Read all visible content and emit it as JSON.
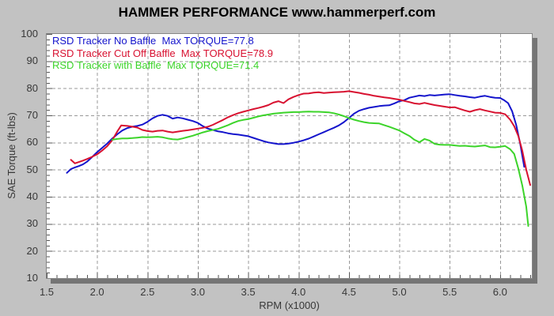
{
  "header": {
    "title": "HAMMER PERFORMANCE www.hammerperf.com"
  },
  "colors": {
    "page_background": "#c2c2c2",
    "plot_background": "#ffffff",
    "plot_border": "#868686",
    "plot_shadow": "#757575",
    "gridline": "#989898",
    "tick_mark": "#555555",
    "tick_text": "#383838",
    "title_text": "#000000",
    "series_blue": "#1414cc",
    "series_red": "#d81130",
    "series_green": "#3cd42a"
  },
  "chart_data": {
    "type": "line",
    "title": "HAMMER PERFORMANCE www.hammerperf.com",
    "xlabel": "RPM (x1000)",
    "ylabel": "SAE Torque (ft-lbs)",
    "xlim": [
      1.5,
      6.32
    ],
    "ylim": [
      10,
      100
    ],
    "x_ticks": [
      1.5,
      2.0,
      2.5,
      3.0,
      3.5,
      4.0,
      4.5,
      5.0,
      5.5,
      6.0
    ],
    "x_tick_decimals": 1,
    "y_ticks": [
      100,
      90,
      80,
      70,
      60,
      50,
      40,
      30,
      20,
      10
    ],
    "x_minor_step": 0.1,
    "y_minor_step": 2,
    "grid": "dashed-major-both-axes",
    "legend_position": "top-left-inside",
    "series": [
      {
        "name": "RSD Tracker No Baffle",
        "label": "RSD Tracker No Baffle  Max TORQUE=77.8",
        "max_torque": 77.8,
        "color": "#1414cc",
        "points": [
          [
            1.7,
            48.8
          ],
          [
            1.74,
            50.2
          ],
          [
            1.78,
            50.8
          ],
          [
            1.82,
            51.3
          ],
          [
            1.86,
            51.9
          ],
          [
            1.9,
            52.9
          ],
          [
            1.95,
            54.6
          ],
          [
            2.0,
            56.4
          ],
          [
            2.05,
            58.0
          ],
          [
            2.1,
            59.6
          ],
          [
            2.15,
            61.4
          ],
          [
            2.2,
            63.0
          ],
          [
            2.25,
            64.4
          ],
          [
            2.3,
            65.3
          ],
          [
            2.35,
            65.8
          ],
          [
            2.4,
            66.1
          ],
          [
            2.45,
            66.6
          ],
          [
            2.5,
            67.6
          ],
          [
            2.55,
            68.9
          ],
          [
            2.6,
            69.8
          ],
          [
            2.65,
            70.2
          ],
          [
            2.7,
            69.8
          ],
          [
            2.75,
            68.8
          ],
          [
            2.8,
            69.2
          ],
          [
            2.85,
            68.9
          ],
          [
            2.9,
            68.4
          ],
          [
            2.95,
            67.9
          ],
          [
            3.0,
            67.2
          ],
          [
            3.05,
            66.0
          ],
          [
            3.1,
            65.1
          ],
          [
            3.15,
            64.6
          ],
          [
            3.2,
            64.1
          ],
          [
            3.25,
            63.8
          ],
          [
            3.3,
            63.4
          ],
          [
            3.35,
            63.1
          ],
          [
            3.4,
            62.9
          ],
          [
            3.45,
            62.6
          ],
          [
            3.5,
            62.3
          ],
          [
            3.55,
            61.7
          ],
          [
            3.6,
            61.1
          ],
          [
            3.65,
            60.5
          ],
          [
            3.7,
            60.0
          ],
          [
            3.75,
            59.7
          ],
          [
            3.8,
            59.4
          ],
          [
            3.85,
            59.4
          ],
          [
            3.9,
            59.6
          ],
          [
            3.95,
            59.9
          ],
          [
            4.0,
            60.3
          ],
          [
            4.05,
            60.8
          ],
          [
            4.1,
            61.4
          ],
          [
            4.15,
            62.2
          ],
          [
            4.2,
            63.0
          ],
          [
            4.25,
            63.8
          ],
          [
            4.3,
            64.6
          ],
          [
            4.35,
            65.4
          ],
          [
            4.4,
            66.3
          ],
          [
            4.45,
            67.5
          ],
          [
            4.5,
            69.0
          ],
          [
            4.55,
            70.6
          ],
          [
            4.6,
            71.7
          ],
          [
            4.65,
            72.3
          ],
          [
            4.7,
            72.8
          ],
          [
            4.75,
            73.1
          ],
          [
            4.8,
            73.4
          ],
          [
            4.85,
            73.6
          ],
          [
            4.9,
            73.7
          ],
          [
            4.95,
            74.4
          ],
          [
            5.0,
            75.2
          ],
          [
            5.05,
            75.6
          ],
          [
            5.1,
            76.5
          ],
          [
            5.15,
            76.9
          ],
          [
            5.2,
            77.3
          ],
          [
            5.25,
            77.1
          ],
          [
            5.3,
            77.5
          ],
          [
            5.35,
            77.3
          ],
          [
            5.4,
            77.5
          ],
          [
            5.45,
            77.7
          ],
          [
            5.5,
            77.8
          ],
          [
            5.55,
            77.5
          ],
          [
            5.6,
            77.2
          ],
          [
            5.65,
            77.0
          ],
          [
            5.7,
            76.7
          ],
          [
            5.75,
            76.5
          ],
          [
            5.8,
            76.9
          ],
          [
            5.85,
            77.2
          ],
          [
            5.9,
            76.8
          ],
          [
            5.95,
            76.5
          ],
          [
            6.0,
            76.4
          ],
          [
            6.04,
            75.6
          ],
          [
            6.08,
            74.5
          ],
          [
            6.12,
            71.5
          ],
          [
            6.16,
            66.5
          ],
          [
            6.2,
            59.5
          ],
          [
            6.24,
            51.0
          ]
        ]
      },
      {
        "name": "RSD Tracker Cut Off Baffle",
        "label": "RSD Tracker Cut Off Baffle  Max TORQUE=78.9",
        "max_torque": 78.9,
        "color": "#d81130",
        "points": [
          [
            1.74,
            53.6
          ],
          [
            1.78,
            52.3
          ],
          [
            1.82,
            52.8
          ],
          [
            1.86,
            53.3
          ],
          [
            1.9,
            53.9
          ],
          [
            1.95,
            54.7
          ],
          [
            2.0,
            55.6
          ],
          [
            2.05,
            57.0
          ],
          [
            2.1,
            58.6
          ],
          [
            2.15,
            60.8
          ],
          [
            2.2,
            64.0
          ],
          [
            2.24,
            66.3
          ],
          [
            2.3,
            66.1
          ],
          [
            2.35,
            65.8
          ],
          [
            2.4,
            65.5
          ],
          [
            2.45,
            64.6
          ],
          [
            2.5,
            64.2
          ],
          [
            2.55,
            64.0
          ],
          [
            2.6,
            64.3
          ],
          [
            2.65,
            64.4
          ],
          [
            2.7,
            64.0
          ],
          [
            2.75,
            63.7
          ],
          [
            2.8,
            64.0
          ],
          [
            2.85,
            64.3
          ],
          [
            2.9,
            64.5
          ],
          [
            2.95,
            64.8
          ],
          [
            3.0,
            65.1
          ],
          [
            3.05,
            65.4
          ],
          [
            3.1,
            65.8
          ],
          [
            3.15,
            66.5
          ],
          [
            3.2,
            67.4
          ],
          [
            3.25,
            68.3
          ],
          [
            3.3,
            69.3
          ],
          [
            3.35,
            70.1
          ],
          [
            3.4,
            70.8
          ],
          [
            3.45,
            71.3
          ],
          [
            3.5,
            71.8
          ],
          [
            3.55,
            72.3
          ],
          [
            3.6,
            72.7
          ],
          [
            3.65,
            73.2
          ],
          [
            3.7,
            73.8
          ],
          [
            3.75,
            74.7
          ],
          [
            3.8,
            75.2
          ],
          [
            3.85,
            74.5
          ],
          [
            3.9,
            75.9
          ],
          [
            3.95,
            76.8
          ],
          [
            4.0,
            77.5
          ],
          [
            4.05,
            78.0
          ],
          [
            4.1,
            78.1
          ],
          [
            4.15,
            78.4
          ],
          [
            4.2,
            78.5
          ],
          [
            4.25,
            78.2
          ],
          [
            4.3,
            78.4
          ],
          [
            4.35,
            78.5
          ],
          [
            4.4,
            78.6
          ],
          [
            4.45,
            78.7
          ],
          [
            4.5,
            78.9
          ],
          [
            4.55,
            78.6
          ],
          [
            4.6,
            78.3
          ],
          [
            4.65,
            77.9
          ],
          [
            4.7,
            77.6
          ],
          [
            4.75,
            77.2
          ],
          [
            4.8,
            76.9
          ],
          [
            4.85,
            76.6
          ],
          [
            4.9,
            76.4
          ],
          [
            4.95,
            76.1
          ],
          [
            5.0,
            75.8
          ],
          [
            5.05,
            75.3
          ],
          [
            5.1,
            74.9
          ],
          [
            5.15,
            74.4
          ],
          [
            5.2,
            74.2
          ],
          [
            5.25,
            74.6
          ],
          [
            5.3,
            74.2
          ],
          [
            5.35,
            73.8
          ],
          [
            5.4,
            73.5
          ],
          [
            5.45,
            73.2
          ],
          [
            5.5,
            72.9
          ],
          [
            5.55,
            73.0
          ],
          [
            5.6,
            72.4
          ],
          [
            5.65,
            71.8
          ],
          [
            5.7,
            71.3
          ],
          [
            5.75,
            71.9
          ],
          [
            5.8,
            72.3
          ],
          [
            5.85,
            71.8
          ],
          [
            5.9,
            71.4
          ],
          [
            5.95,
            71.0
          ],
          [
            6.0,
            70.9
          ],
          [
            6.05,
            70.4
          ],
          [
            6.1,
            68.4
          ],
          [
            6.14,
            66.0
          ],
          [
            6.18,
            62.5
          ],
          [
            6.22,
            57.0
          ],
          [
            6.26,
            50.0
          ],
          [
            6.3,
            44.3
          ]
        ]
      },
      {
        "name": "RSD Tracker with Baffle",
        "label": "RSD Tracker with Baffle  Max TORQUE=71.4",
        "max_torque": 71.4,
        "color": "#3cd42a",
        "points": [
          [
            2.15,
            61.0
          ],
          [
            2.2,
            61.3
          ],
          [
            2.25,
            61.5
          ],
          [
            2.3,
            61.5
          ],
          [
            2.35,
            61.6
          ],
          [
            2.4,
            61.8
          ],
          [
            2.45,
            62.0
          ],
          [
            2.5,
            61.9
          ],
          [
            2.55,
            62.0
          ],
          [
            2.6,
            62.1
          ],
          [
            2.65,
            61.9
          ],
          [
            2.7,
            61.5
          ],
          [
            2.75,
            61.2
          ],
          [
            2.8,
            61.1
          ],
          [
            2.85,
            61.5
          ],
          [
            2.9,
            62.0
          ],
          [
            2.95,
            62.5
          ],
          [
            3.0,
            63.1
          ],
          [
            3.05,
            63.7
          ],
          [
            3.1,
            64.2
          ],
          [
            3.15,
            64.6
          ],
          [
            3.2,
            65.0
          ],
          [
            3.25,
            65.7
          ],
          [
            3.3,
            66.4
          ],
          [
            3.35,
            67.2
          ],
          [
            3.4,
            67.9
          ],
          [
            3.45,
            68.3
          ],
          [
            3.5,
            68.6
          ],
          [
            3.55,
            69.1
          ],
          [
            3.6,
            69.6
          ],
          [
            3.65,
            70.0
          ],
          [
            3.7,
            70.3
          ],
          [
            3.75,
            70.6
          ],
          [
            3.8,
            70.8
          ],
          [
            3.85,
            71.0
          ],
          [
            3.9,
            71.1
          ],
          [
            3.95,
            71.2
          ],
          [
            4.0,
            71.2
          ],
          [
            4.05,
            71.3
          ],
          [
            4.1,
            71.4
          ],
          [
            4.15,
            71.3
          ],
          [
            4.2,
            71.3
          ],
          [
            4.25,
            71.2
          ],
          [
            4.3,
            71.1
          ],
          [
            4.35,
            70.8
          ],
          [
            4.4,
            70.3
          ],
          [
            4.45,
            69.7
          ],
          [
            4.5,
            69.0
          ],
          [
            4.55,
            68.4
          ],
          [
            4.6,
            67.9
          ],
          [
            4.65,
            67.5
          ],
          [
            4.7,
            67.2
          ],
          [
            4.75,
            67.1
          ],
          [
            4.8,
            67.0
          ],
          [
            4.85,
            66.4
          ],
          [
            4.9,
            65.8
          ],
          [
            4.95,
            65.1
          ],
          [
            5.0,
            64.4
          ],
          [
            5.05,
            63.4
          ],
          [
            5.1,
            62.4
          ],
          [
            5.15,
            61.0
          ],
          [
            5.2,
            60.1
          ],
          [
            5.25,
            61.3
          ],
          [
            5.3,
            60.7
          ],
          [
            5.35,
            59.5
          ],
          [
            5.4,
            59.2
          ],
          [
            5.45,
            59.1
          ],
          [
            5.5,
            59.1
          ],
          [
            5.55,
            58.9
          ],
          [
            5.6,
            58.7
          ],
          [
            5.65,
            58.8
          ],
          [
            5.7,
            58.6
          ],
          [
            5.75,
            58.5
          ],
          [
            5.8,
            58.7
          ],
          [
            5.85,
            58.9
          ],
          [
            5.9,
            58.3
          ],
          [
            5.95,
            58.2
          ],
          [
            6.0,
            58.4
          ],
          [
            6.05,
            58.7
          ],
          [
            6.1,
            57.5
          ],
          [
            6.14,
            55.8
          ],
          [
            6.18,
            50.5
          ],
          [
            6.22,
            44.2
          ],
          [
            6.26,
            36.4
          ],
          [
            6.28,
            29.2
          ]
        ]
      }
    ]
  }
}
